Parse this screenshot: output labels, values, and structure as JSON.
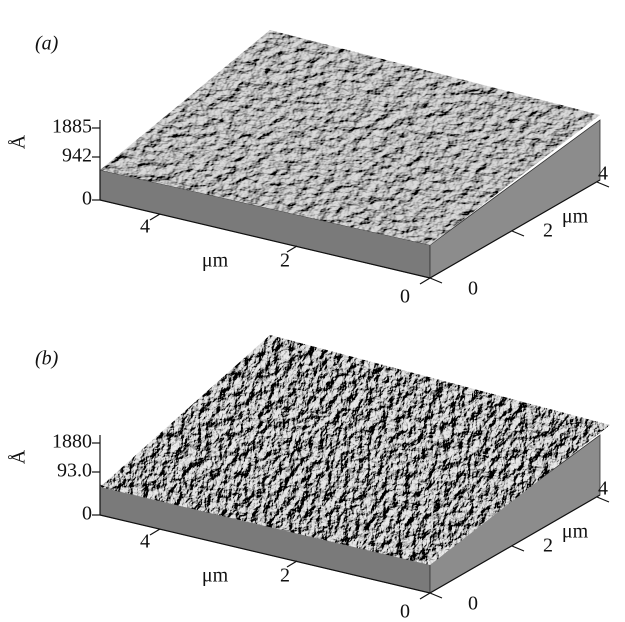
{
  "panels": [
    {
      "label": "(a)",
      "z_unit": "Å",
      "z_ticks": [
        "1885",
        "942",
        "0"
      ],
      "x_unit": "μm",
      "x_ticks": [
        "4",
        "2",
        "0"
      ],
      "y_unit": "μm",
      "y_ticks": [
        "0",
        "2",
        "4"
      ]
    },
    {
      "label": "(b)",
      "z_unit": "Å",
      "z_ticks": [
        "1880",
        "93.0",
        "0"
      ],
      "x_unit": "μm",
      "x_ticks": [
        "4",
        "2",
        "0"
      ],
      "y_unit": "μm",
      "y_ticks": [
        "0",
        "2",
        "4"
      ]
    }
  ]
}
